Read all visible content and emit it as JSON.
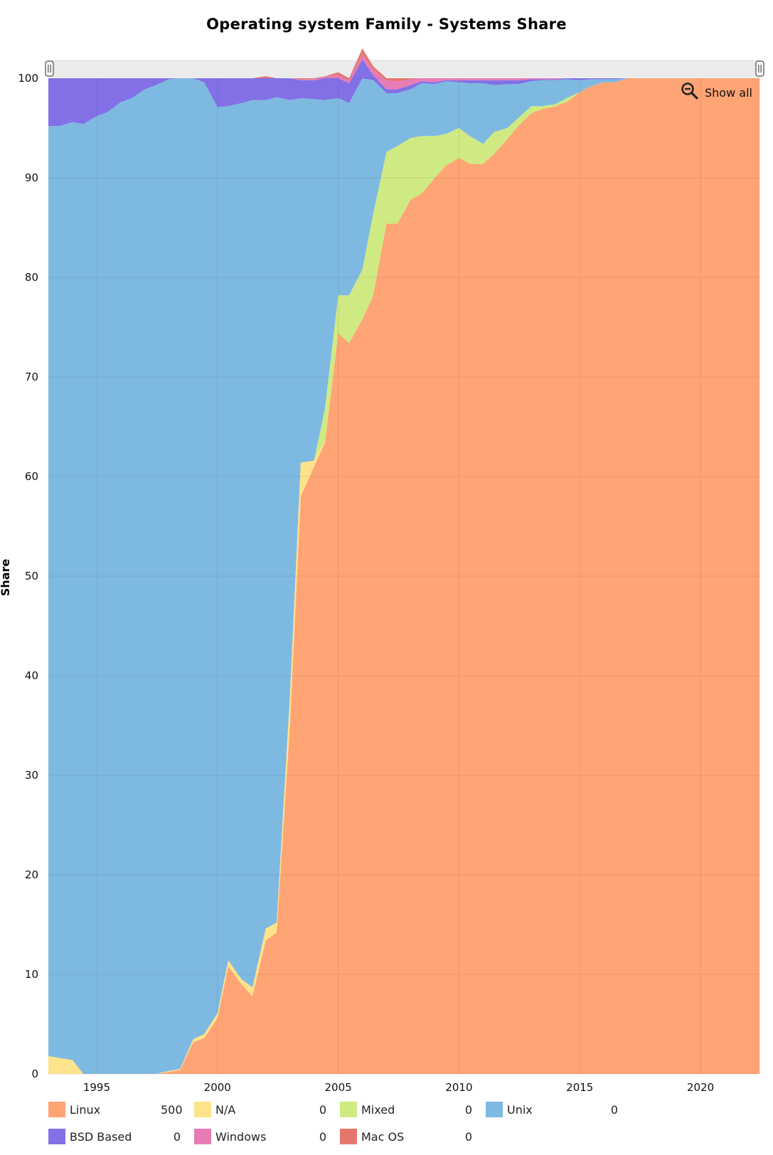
{
  "chart_data": {
    "type": "area",
    "stacked": true,
    "percent": true,
    "title": "Operating system Family - Systems Share",
    "ylabel": "Share",
    "xlabel": "",
    "ylim": [
      0,
      100
    ],
    "xlim": [
      1993.0,
      2022.5
    ],
    "y_ticks": [
      0,
      10,
      20,
      30,
      40,
      50,
      60,
      70,
      80,
      90,
      100
    ],
    "x_ticks": [
      1995,
      2000,
      2005,
      2010,
      2015,
      2020
    ],
    "grid": true,
    "legend_position": "bottom",
    "x": [
      1993.0,
      1993.45,
      1994.0,
      1994.45,
      1995.0,
      1995.45,
      1996.0,
      1996.45,
      1997.0,
      1997.45,
      1998.0,
      1998.45,
      1999.0,
      1999.45,
      2000.0,
      2000.45,
      2001.0,
      2001.45,
      2002.0,
      2002.45,
      2003.0,
      2003.45,
      2004.0,
      2004.45,
      2005.0,
      2005.45,
      2006.0,
      2006.45,
      2007.0,
      2007.45,
      2008.0,
      2008.45,
      2009.0,
      2009.45,
      2010.0,
      2010.45,
      2011.0,
      2011.45,
      2012.0,
      2012.45,
      2013.0,
      2013.45,
      2014.0,
      2014.45,
      2015.0,
      2015.45,
      2016.0,
      2016.45,
      2017.0,
      2017.45,
      2018.0,
      2018.45,
      2019.0,
      2019.45,
      2020.0,
      2020.45,
      2021.0,
      2021.45,
      2022.0,
      2022.45
    ],
    "series": [
      {
        "name": "Linux",
        "color": "#FFA474",
        "legend_value": "500",
        "values": [
          0,
          0,
          0,
          0,
          0,
          0,
          0,
          0,
          0,
          0,
          0.2,
          0.4,
          3.2,
          3.6,
          5.6,
          10.8,
          9.0,
          7.8,
          13.4,
          14.2,
          35.0,
          58.0,
          61.0,
          63.4,
          74.4,
          73.4,
          75.8,
          78.2,
          85.4,
          85.4,
          87.8,
          88.4,
          90.0,
          91.2,
          92.0,
          91.4,
          91.4,
          92.4,
          93.9,
          95.2,
          96.5,
          96.9,
          97.2,
          97.6,
          98.6,
          99.2,
          99.6,
          99.6,
          100,
          100,
          100,
          100,
          100,
          100,
          100,
          100,
          100,
          100,
          100,
          100
        ]
      },
      {
        "name": "N/A",
        "color": "#FDE38A",
        "legend_value": "0",
        "values": [
          1.8,
          1.6,
          1.4,
          0,
          0,
          0,
          0,
          0,
          0,
          0,
          0.1,
          0.1,
          0.3,
          0.4,
          0.5,
          0.6,
          0.5,
          0.9,
          1.2,
          1.0,
          3.0,
          3.4,
          0.6,
          0.2,
          0,
          0,
          0,
          0,
          0,
          0,
          0,
          0,
          0,
          0,
          0,
          0,
          0,
          0,
          0,
          0,
          0,
          0,
          0,
          0,
          0,
          0,
          0,
          0,
          0,
          0,
          0,
          0,
          0,
          0,
          0,
          0,
          0,
          0,
          0,
          0
        ]
      },
      {
        "name": "Mixed",
        "color": "#CFEA82",
        "legend_value": "0",
        "values": [
          0,
          0,
          0,
          0,
          0,
          0,
          0,
          0,
          0,
          0,
          0,
          0,
          0,
          0,
          0,
          0,
          0,
          0,
          0,
          0,
          0,
          0,
          0,
          3.2,
          3.8,
          4.8,
          5.0,
          8.2,
          7.2,
          7.8,
          6.2,
          5.8,
          4.2,
          3.2,
          3.0,
          2.8,
          2.0,
          2.2,
          1.1,
          0.8,
          0.7,
          0.3,
          0.2,
          0.4,
          0,
          0,
          0,
          0,
          0,
          0,
          0,
          0,
          0,
          0,
          0,
          0,
          0,
          0,
          0,
          0
        ]
      },
      {
        "name": "Unix",
        "color": "#7EB9E1",
        "legend_value": "0",
        "values": [
          93.4,
          93.6,
          94.2,
          95.4,
          96.2,
          96.6,
          97.6,
          98.0,
          98.9,
          99.3,
          99.6,
          99.5,
          96.5,
          95.6,
          91.0,
          85.8,
          88.0,
          89.1,
          83.2,
          82.9,
          59.8,
          36.6,
          36.3,
          31.0,
          19.8,
          19.3,
          19.2,
          13.4,
          5.9,
          5.3,
          4.9,
          5.3,
          5.2,
          5.3,
          4.6,
          5.3,
          6.1,
          4.7,
          4.4,
          3.4,
          2.5,
          2.6,
          2.4,
          1.9,
          1.2,
          0.7,
          0.3,
          0.3,
          0,
          0,
          0,
          0,
          0,
          0,
          0,
          0,
          0,
          0,
          0,
          0
        ]
      },
      {
        "name": "BSD Based",
        "color": "#8370E6",
        "legend_value": "0",
        "values": [
          4.8,
          4.8,
          4.4,
          4.6,
          3.8,
          3.4,
          2.4,
          2.0,
          1.1,
          0.7,
          0.1,
          0,
          0,
          0.4,
          2.9,
          2.8,
          2.5,
          2.2,
          2.2,
          1.9,
          2.2,
          1.8,
          1.9,
          2.2,
          2.0,
          2.0,
          1.9,
          0.5,
          0.4,
          0.4,
          0.4,
          0.2,
          0.2,
          0.1,
          0.2,
          0.3,
          0.3,
          0.5,
          0.4,
          0.4,
          0.2,
          0.1,
          0.1,
          0.1,
          0.2,
          0.1,
          0.1,
          0.1,
          0,
          0,
          0,
          0,
          0,
          0,
          0,
          0,
          0,
          0,
          0,
          0
        ]
      },
      {
        "name": "Windows",
        "color": "#E87CB5",
        "legend_value": "0",
        "values": [
          0,
          0,
          0,
          0,
          0,
          0,
          0,
          0,
          0,
          0,
          0,
          0,
          0,
          0,
          0,
          0,
          0,
          0,
          0,
          0,
          0,
          0.1,
          0.1,
          0.2,
          0.3,
          0.3,
          0.5,
          0.6,
          0.9,
          0.8,
          0.6,
          0.3,
          0.4,
          0.2,
          0.2,
          0.2,
          0.2,
          0.2,
          0.2,
          0.2,
          0.1,
          0.1,
          0.1,
          0,
          0,
          0,
          0,
          0,
          0,
          0,
          0,
          0,
          0,
          0,
          0,
          0,
          0,
          0,
          0,
          0
        ]
      },
      {
        "name": "Mac OS",
        "color": "#E5766D",
        "legend_value": "0",
        "values": [
          0,
          0,
          0,
          0,
          0,
          0,
          0,
          0,
          0,
          0,
          0,
          0,
          0,
          0,
          0,
          0,
          0,
          0,
          0.2,
          0,
          0,
          0.1,
          0.1,
          0,
          0.3,
          0.2,
          0.6,
          0.3,
          0.2,
          0.3,
          0.1,
          0,
          0,
          0,
          0,
          0,
          0,
          0,
          0,
          0,
          0,
          0,
          0,
          0,
          0,
          0,
          0,
          0,
          0,
          0,
          0,
          0,
          0,
          0,
          0,
          0,
          0,
          0,
          0,
          0
        ]
      }
    ]
  },
  "ui": {
    "show_all_label": "Show all"
  }
}
